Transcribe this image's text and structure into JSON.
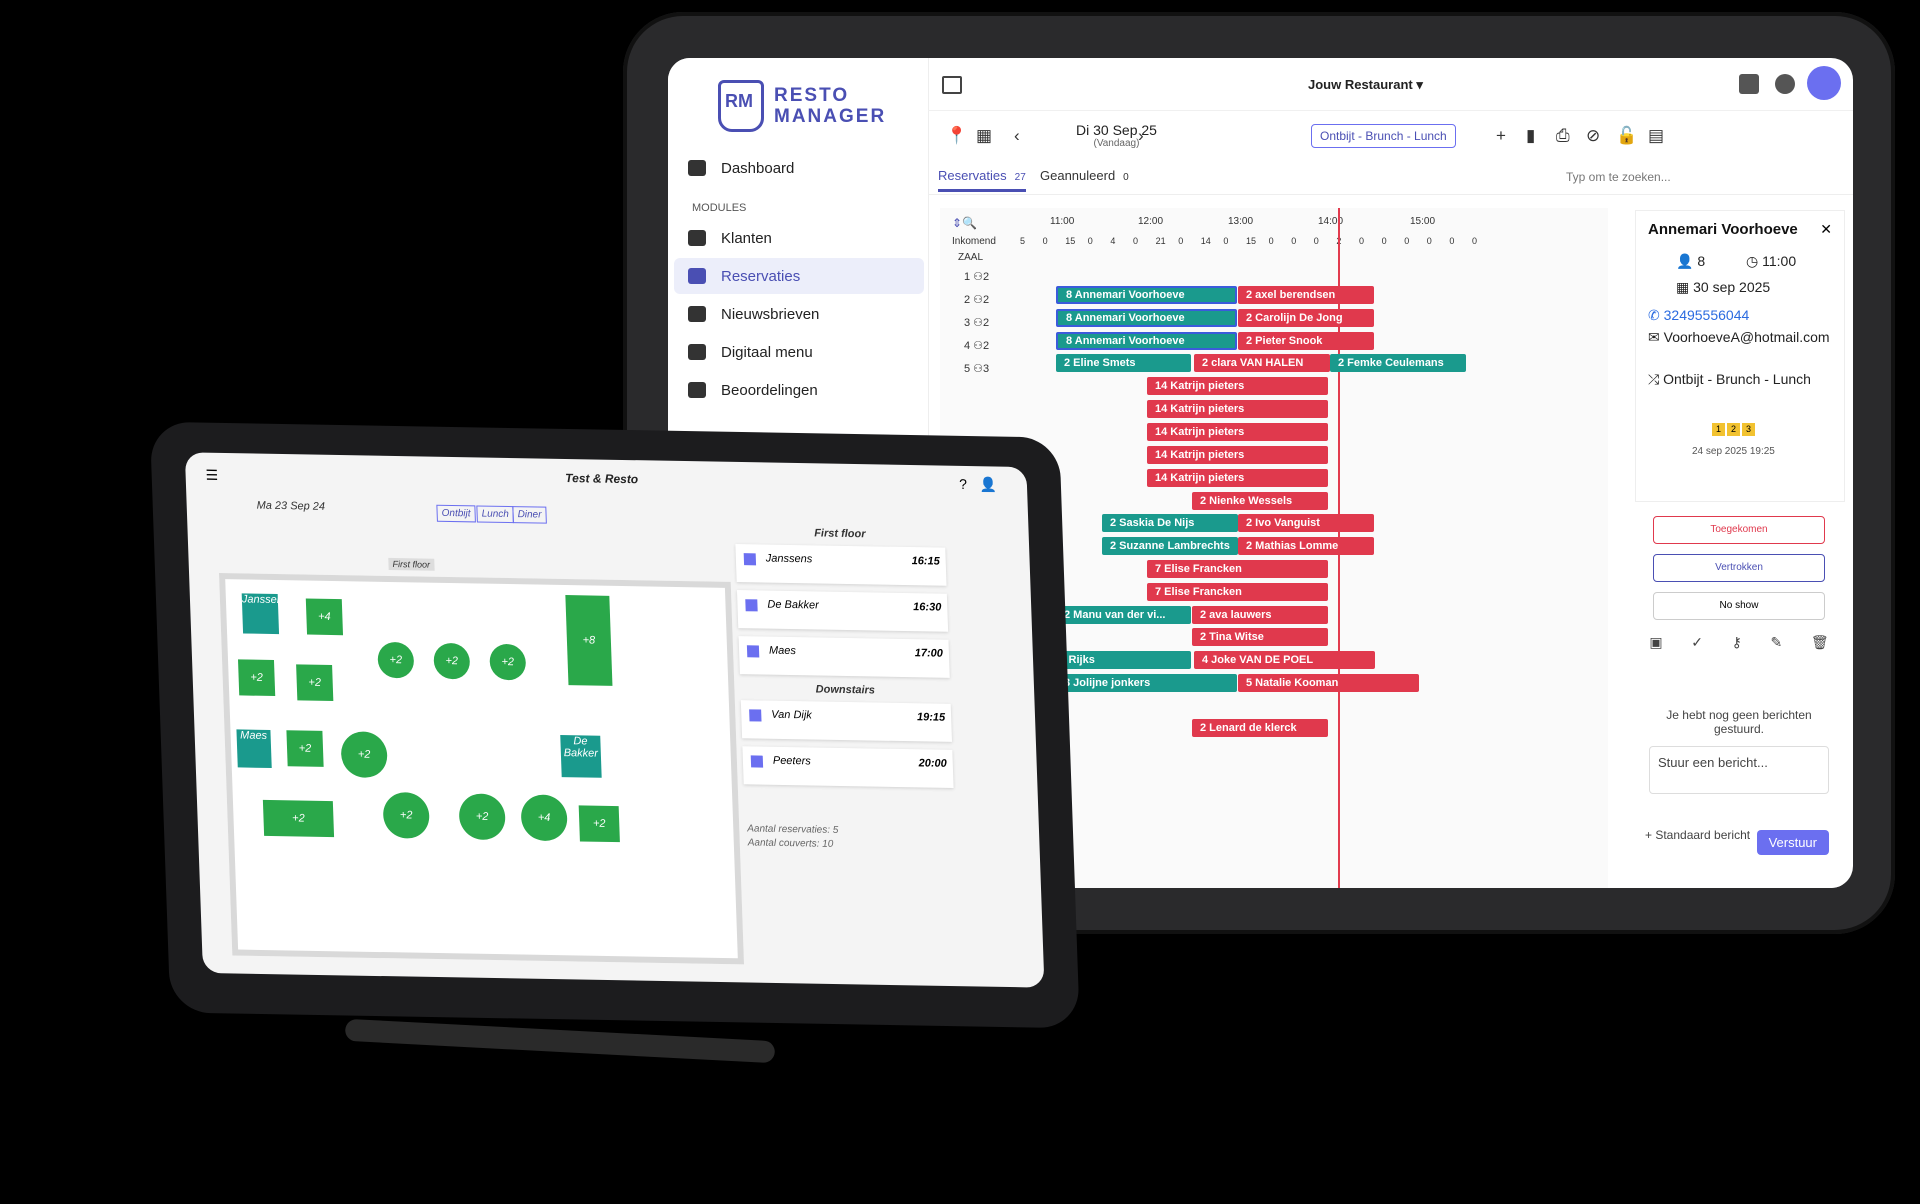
{
  "back_tablet": {
    "logo": {
      "line1": "RESTO",
      "line2": "MANAGER"
    },
    "nav": {
      "dashboard": "Dashboard",
      "section": "MODULES",
      "items": [
        "Klanten",
        "Reservaties",
        "Nieuwsbrieven",
        "Digitaal menu",
        "Beoordelingen"
      ]
    },
    "topbar": {
      "restaurant": "Jouw Restaurant ▾"
    },
    "toolbar": {
      "date": "Di 30 Sep 25",
      "date_sub": "(Vandaag)",
      "service": "Ontbijt - Brunch - Lunch"
    },
    "tabs": {
      "reservaties": "Reservaties",
      "reservaties_count": "27",
      "geannuleerd": "Geannuleerd",
      "geannuleerd_count": "0",
      "search_placeholder": "Typ om te zoeken..."
    },
    "grid": {
      "times": [
        "11:00",
        "12:00",
        "13:00",
        "14:00",
        "15:00"
      ],
      "inkomend": "Inkomend",
      "zaal": "ZAAL",
      "counts": [
        "5",
        "0",
        "15",
        "0",
        "4",
        "0",
        "21",
        "0",
        "14",
        "0",
        "15",
        "0",
        "0",
        "0",
        "2",
        "0",
        "0",
        "0",
        "0",
        "0",
        "0"
      ],
      "rows": [
        {
          "n": "1",
          "c": "2"
        },
        {
          "n": "2",
          "c": "2"
        },
        {
          "n": "3",
          "c": "2"
        },
        {
          "n": "4",
          "c": "2"
        },
        {
          "n": "5",
          "c": "3"
        }
      ],
      "reservations": [
        {
          "label": "8  Annemari Voorhoeve",
          "color": "teal",
          "sel": true
        },
        {
          "label": "2  axel berendsen",
          "color": "red"
        },
        {
          "label": "8  Annemari Voorhoeve",
          "color": "teal",
          "sel": true
        },
        {
          "label": "2  Carolijn De Jong",
          "color": "red"
        },
        {
          "label": "8  Annemari Voorhoeve",
          "color": "teal",
          "sel": true
        },
        {
          "label": "2  Pieter Snook",
          "color": "red"
        },
        {
          "label": "2  Eline Smets",
          "color": "teal"
        },
        {
          "label": "2  clara VAN HALEN",
          "color": "red"
        },
        {
          "label": "2  Femke Ceulemans",
          "color": "teal"
        },
        {
          "label": "14  Katrijn pieters",
          "color": "red"
        },
        {
          "label": "14  Katrijn pieters",
          "color": "red"
        },
        {
          "label": "14  Katrijn pieters",
          "color": "red"
        },
        {
          "label": "14  Katrijn pieters",
          "color": "red"
        },
        {
          "label": "14  Katrijn pieters",
          "color": "red"
        },
        {
          "label": "2  Nienke Wessels",
          "color": "red"
        },
        {
          "label": "2  Saskia De Nijs",
          "color": "teal"
        },
        {
          "label": "2  Ivo Vanguist",
          "color": "red"
        },
        {
          "label": "2  Suzanne Lambrechts",
          "color": "teal"
        },
        {
          "label": "2  Mathias Lomme",
          "color": "red"
        },
        {
          "label": "7  Elise Francken",
          "color": "red"
        },
        {
          "label": "7  Elise Francken",
          "color": "red"
        },
        {
          "label": "2  Manu van der vi...",
          "color": "teal"
        },
        {
          "label": "2  ava lauwers",
          "color": "red"
        },
        {
          "label": "2  Tina Witse",
          "color": "red"
        },
        {
          "label": "3  Tommy Rijks",
          "color": "teal"
        },
        {
          "label": "4  Joke VAN DE POEL",
          "color": "red"
        },
        {
          "label": "3  Jolijne jonkers",
          "color": "teal"
        },
        {
          "label": "5  Natalie Kooman",
          "color": "red"
        },
        {
          "label": "2  Lenard de klerck",
          "color": "red"
        }
      ]
    },
    "detail": {
      "name": "Annemari Voorhoeve",
      "guests": "8",
      "time": "11:00",
      "date": "30 sep 2025",
      "phone": "32495556044",
      "email": "VoorhoeveA@hotmail.com",
      "service": "Ontbijt - Brunch - Lunch",
      "badges": [
        "1",
        "2",
        "3"
      ],
      "created": "24 sep 2025 19:25"
    },
    "status_buttons": [
      "Toegekomen",
      "Vertrokken",
      "No show"
    ],
    "messages": {
      "empty": "Je hebt nog geen berichten gestuurd.",
      "placeholder": "Stuur een bericht...",
      "standard": "+ Standaard bericht",
      "send": "Verstuur"
    }
  },
  "front_tablet": {
    "title": "Test & Resto",
    "date": "Ma 23 Sep 24",
    "services": [
      "Ontbijt",
      "Lunch",
      "Diner"
    ],
    "floor_tab": "First floor",
    "tables": [
      "Janssens",
      "+4",
      "+2",
      "+2",
      "+2",
      "+2",
      "+8",
      "+2",
      "+2",
      "Maes",
      "+2",
      "+2",
      "De Bakker",
      "+2",
      "+2",
      "+4",
      "+2"
    ],
    "list_heading_1": "First floor",
    "list_heading_2": "Downstairs",
    "cards": [
      {
        "name": "Janssens",
        "time": "16:15"
      },
      {
        "name": "De Bakker",
        "time": "16:30"
      },
      {
        "name": "Maes",
        "time": "17:00"
      },
      {
        "name": "Van Dijk",
        "time": "19:15"
      },
      {
        "name": "Peeters",
        "time": "20:00"
      }
    ],
    "summary": {
      "res": "Aantal reservaties: 5",
      "cov": "Aantal couverts: 10"
    }
  }
}
